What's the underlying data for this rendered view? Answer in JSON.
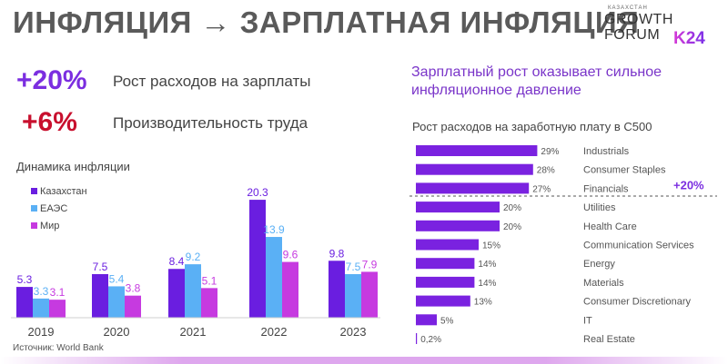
{
  "page_title": "ИНФЛЯЦИЯ → ЗАРПЛАТНАЯ ИНФЛЯЦИЯ",
  "logo": {
    "line1": "КАЗАХСТАН",
    "line2": "GROWTH",
    "line3": "FORUM",
    "badge": "K24"
  },
  "metrics": [
    {
      "value": "+20%",
      "text": "Рост расходов на зарплаты",
      "color": "#7b2ee0"
    },
    {
      "value": "+6%",
      "text": "Производительность труда",
      "color": "#c8102e"
    }
  ],
  "headline": "Зарплатный рост оказывает сильное инфляционное давление",
  "source": "Источник: World Bank",
  "colors": {
    "kz": "#6a1ee0",
    "eaes": "#5ab0f5",
    "world": "#c63ae0",
    "sector_bar": "#7a22e0",
    "accent": "#7b2ee0"
  },
  "chart_data": [
    {
      "type": "bar",
      "title": "Динамика инфляции",
      "categories": [
        "2019",
        "2020",
        "2021",
        "2022",
        "2023"
      ],
      "series": [
        {
          "name": "Казахстан",
          "values": [
            5.3,
            7.5,
            8.4,
            20.3,
            9.8
          ],
          "labels": [
            "5.3",
            "7.5",
            "8.4",
            "20.3",
            "9.8"
          ]
        },
        {
          "name": "ЕАЭС",
          "values": [
            3.3,
            5.4,
            9.2,
            13.9,
            7.5
          ],
          "labels": [
            "3.3",
            "5.4",
            "9.2",
            "13.9",
            "7.5"
          ]
        },
        {
          "name": "Мир",
          "values": [
            3.1,
            3.8,
            5.1,
            9.6,
            7.9
          ],
          "labels": [
            "3.1",
            "3.8",
            "5.1",
            "9.6",
            "7.9"
          ]
        }
      ],
      "ylim": [
        0,
        22
      ],
      "grid": false,
      "legend": "top-left"
    },
    {
      "type": "bar",
      "orientation": "horizontal",
      "title": "Рост расходов на заработную плату в С500",
      "categories": [
        "Industrials",
        "Consumer Staples",
        "Financials",
        "Utilities",
        "Health Care",
        "Communication Services",
        "Energy",
        "Materials",
        "Consumer Discretionary",
        "IT",
        "Real Estate"
      ],
      "values": [
        29,
        28,
        27,
        20,
        20,
        15,
        14,
        14,
        13,
        5,
        0.2
      ],
      "labels": [
        "29%",
        "28%",
        "27%",
        "20%",
        "20%",
        "15%",
        "14%",
        "14%",
        "13%",
        "5%",
        "0,2%"
      ],
      "annotation": "+20%",
      "xlim": [
        0,
        30
      ],
      "grid": false
    }
  ]
}
